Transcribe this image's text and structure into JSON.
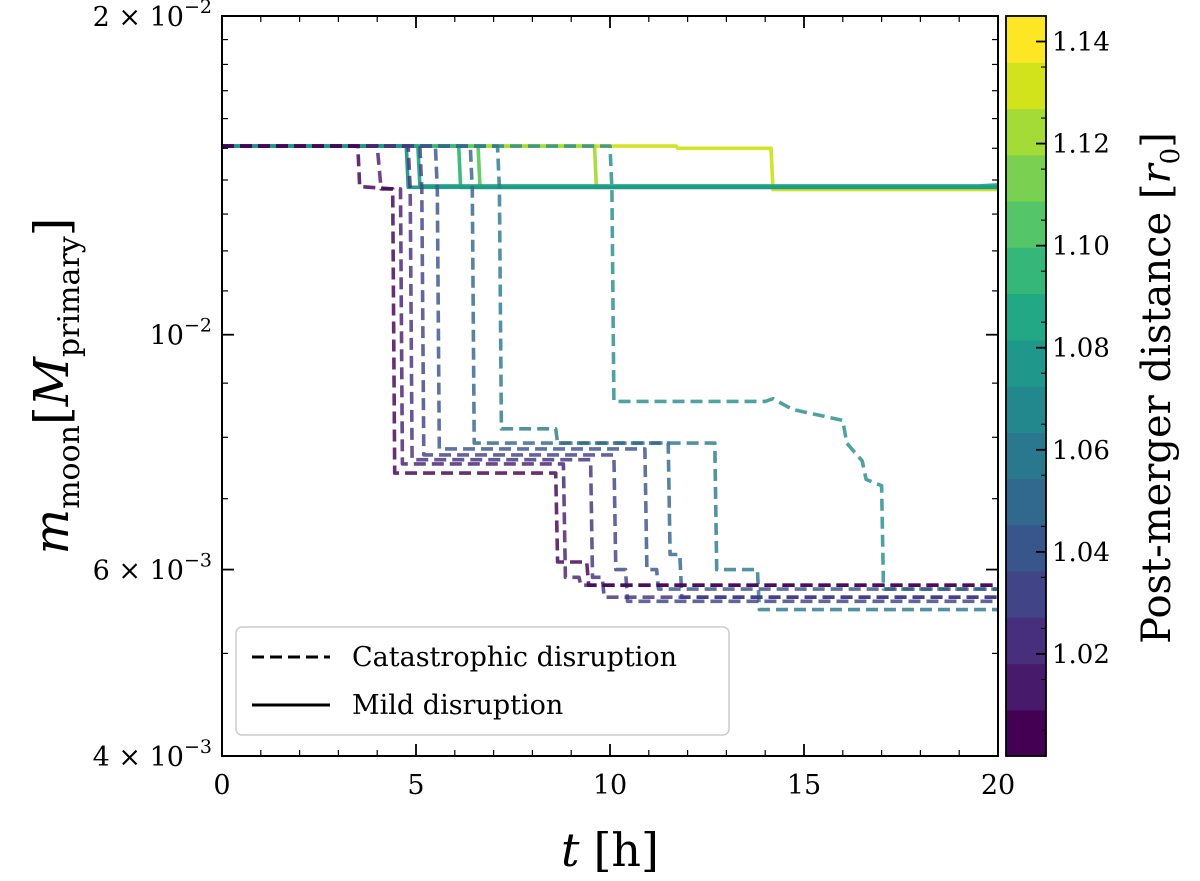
{
  "chart_data": {
    "type": "line",
    "xlabel": {
      "main": "t",
      "unit": "[h]"
    },
    "ylabel": {
      "main": "m",
      "sub": "moon",
      "bracket_open": "[",
      "unit_main": "M",
      "unit_sub": "primary",
      "bracket_close": "]"
    },
    "xlim": [
      0,
      20
    ],
    "ylim": [
      0.004,
      0.02
    ],
    "yscale": "log",
    "xticks": [
      {
        "value": 0,
        "label": "0"
      },
      {
        "value": 5,
        "label": "5"
      },
      {
        "value": 10,
        "label": "10"
      },
      {
        "value": 15,
        "label": "15"
      },
      {
        "value": 20,
        "label": "20"
      }
    ],
    "yticks": [
      {
        "value": 0.02,
        "mant": "2 × 10",
        "exp": "−2"
      },
      {
        "value": 0.01,
        "mant": "10",
        "exp": "−2"
      },
      {
        "value": 0.006,
        "mant": "6 × 10",
        "exp": "−3"
      },
      {
        "value": 0.004,
        "mant": "4 × 10",
        "exp": "−3"
      }
    ],
    "legend": {
      "position": "lower-left",
      "entries": [
        {
          "label": "Catastrophic disruption",
          "style": "dashed"
        },
        {
          "label": "Mild disruption",
          "style": "solid"
        }
      ]
    },
    "colorbar": {
      "label_main": "Post-merger distance [",
      "label_sym": "r",
      "label_sub": "0",
      "label_close": "]",
      "range": [
        1.0,
        1.145
      ],
      "ticks": [
        "1.02",
        "1.04",
        "1.06",
        "1.08",
        "1.10",
        "1.12",
        "1.14"
      ],
      "tick_values": [
        1.02,
        1.04,
        1.06,
        1.08,
        1.1,
        1.12,
        1.14
      ],
      "colors": [
        "#440154",
        "#481a6c",
        "#472f7d",
        "#414487",
        "#39568c",
        "#31688e",
        "#2a788e",
        "#23888e",
        "#1f988b",
        "#22a884",
        "#35b779",
        "#54c568",
        "#7ad151",
        "#a5db36",
        "#d2e21b",
        "#fde725"
      ]
    },
    "series": [
      {
        "name": "mild r0=1.140",
        "style": "solid",
        "color": "#d0e11c",
        "points": [
          [
            0,
            0.01507
          ],
          [
            11.7,
            0.01507
          ],
          [
            11.75,
            0.015
          ],
          [
            14.15,
            0.015
          ],
          [
            14.2,
            0.01371
          ],
          [
            20,
            0.01371
          ]
        ]
      },
      {
        "name": "mild r0=1.125",
        "style": "solid",
        "color": "#a8db34",
        "points": [
          [
            0,
            0.01507
          ],
          [
            9.6,
            0.01507
          ],
          [
            9.65,
            0.01378
          ],
          [
            20,
            0.01378
          ]
        ]
      },
      {
        "name": "mild r0=1.105",
        "style": "solid",
        "color": "#5ec962",
        "points": [
          [
            0,
            0.01507
          ],
          [
            6.6,
            0.01507
          ],
          [
            6.65,
            0.01378
          ],
          [
            20,
            0.01378
          ]
        ]
      },
      {
        "name": "mild r0=1.095",
        "style": "solid",
        "color": "#35b779",
        "points": [
          [
            0,
            0.01507
          ],
          [
            6.1,
            0.01507
          ],
          [
            6.15,
            0.01378
          ],
          [
            20,
            0.01378
          ]
        ]
      },
      {
        "name": "mild r0=1.085",
        "style": "solid",
        "color": "#22a884",
        "points": [
          [
            0,
            0.01507
          ],
          [
            5.05,
            0.01507
          ],
          [
            5.1,
            0.01382
          ],
          [
            19.5,
            0.01382
          ],
          [
            20,
            0.01385
          ]
        ]
      },
      {
        "name": "mild r0=1.080",
        "style": "solid",
        "color": "#1f988b",
        "points": [
          [
            0,
            0.01507
          ],
          [
            4.75,
            0.01507
          ],
          [
            4.8,
            0.01378
          ],
          [
            20,
            0.01378
          ]
        ]
      },
      {
        "name": "cat r0=1.075",
        "style": "dashed",
        "color": "#2a8d8e",
        "points": [
          [
            0,
            0.01507
          ],
          [
            10.0,
            0.01507
          ],
          [
            10.05,
            0.01373
          ],
          [
            10.1,
            0.00865
          ],
          [
            14.0,
            0.00865
          ],
          [
            14.2,
            0.0087
          ],
          [
            14.7,
            0.0085
          ],
          [
            16.0,
            0.0083
          ],
          [
            16.1,
            0.0079
          ],
          [
            16.5,
            0.0076
          ],
          [
            16.6,
            0.0073
          ],
          [
            17.0,
            0.0072
          ],
          [
            17.05,
            0.00575
          ],
          [
            20,
            0.00575
          ]
        ]
      },
      {
        "name": "cat r0=1.065",
        "style": "dashed",
        "color": "#2c7a8d",
        "points": [
          [
            0,
            0.01507
          ],
          [
            7.1,
            0.01507
          ],
          [
            7.15,
            0.01373
          ],
          [
            7.2,
            0.00815
          ],
          [
            8.6,
            0.00815
          ],
          [
            8.65,
            0.0079
          ],
          [
            12.7,
            0.0079
          ],
          [
            12.75,
            0.006
          ],
          [
            13.8,
            0.006
          ],
          [
            13.85,
            0.0055
          ],
          [
            20,
            0.0055
          ]
        ]
      },
      {
        "name": "cat r0=1.055",
        "style": "dashed",
        "color": "#32668d",
        "points": [
          [
            0,
            0.01507
          ],
          [
            6.4,
            0.01507
          ],
          [
            6.45,
            0.01373
          ],
          [
            6.5,
            0.0079
          ],
          [
            11.5,
            0.0079
          ],
          [
            11.55,
            0.0062
          ],
          [
            11.8,
            0.0062
          ],
          [
            11.85,
            0.00565
          ],
          [
            20,
            0.00565
          ]
        ]
      },
      {
        "name": "cat r0=1.045",
        "style": "dashed",
        "color": "#3a548c",
        "points": [
          [
            0,
            0.01507
          ],
          [
            5.5,
            0.01507
          ],
          [
            5.55,
            0.01373
          ],
          [
            5.6,
            0.0078
          ],
          [
            10.9,
            0.0078
          ],
          [
            10.95,
            0.006
          ],
          [
            11.2,
            0.006
          ],
          [
            11.25,
            0.00575
          ],
          [
            20,
            0.00575
          ]
        ]
      },
      {
        "name": "cat r0=1.035",
        "style": "dashed",
        "color": "#414487",
        "points": [
          [
            0,
            0.01507
          ],
          [
            5.1,
            0.01507
          ],
          [
            5.15,
            0.01373
          ],
          [
            5.2,
            0.0077
          ],
          [
            10.1,
            0.0077
          ],
          [
            10.15,
            0.006
          ],
          [
            10.4,
            0.006
          ],
          [
            10.45,
            0.0056
          ],
          [
            20,
            0.0056
          ]
        ]
      },
      {
        "name": "cat r0=1.025",
        "style": "dashed",
        "color": "#46327e",
        "points": [
          [
            0,
            0.01507
          ],
          [
            4.8,
            0.01507
          ],
          [
            4.85,
            0.01373
          ],
          [
            4.9,
            0.00762
          ],
          [
            9.5,
            0.00762
          ],
          [
            9.55,
            0.0059
          ],
          [
            9.8,
            0.0059
          ],
          [
            9.85,
            0.00565
          ],
          [
            20,
            0.00565
          ]
        ]
      },
      {
        "name": "cat r0=1.015",
        "style": "dashed",
        "color": "#482173",
        "points": [
          [
            0,
            0.01507
          ],
          [
            4.0,
            0.01507
          ],
          [
            4.1,
            0.01373
          ],
          [
            4.6,
            0.01373
          ],
          [
            4.65,
            0.00755
          ],
          [
            8.8,
            0.00755
          ],
          [
            8.85,
            0.0059
          ],
          [
            9.2,
            0.0059
          ],
          [
            9.25,
            0.0058
          ],
          [
            20,
            0.0058
          ]
        ]
      },
      {
        "name": "cat r0=1.005",
        "style": "dashed",
        "color": "#440154",
        "points": [
          [
            0,
            0.01507
          ],
          [
            3.5,
            0.01507
          ],
          [
            3.55,
            0.0138
          ],
          [
            4.4,
            0.01373
          ],
          [
            4.45,
            0.0074
          ],
          [
            8.6,
            0.0074
          ],
          [
            8.65,
            0.0061
          ],
          [
            9.4,
            0.0061
          ],
          [
            9.45,
            0.0058
          ],
          [
            20,
            0.0058
          ]
        ]
      }
    ]
  }
}
